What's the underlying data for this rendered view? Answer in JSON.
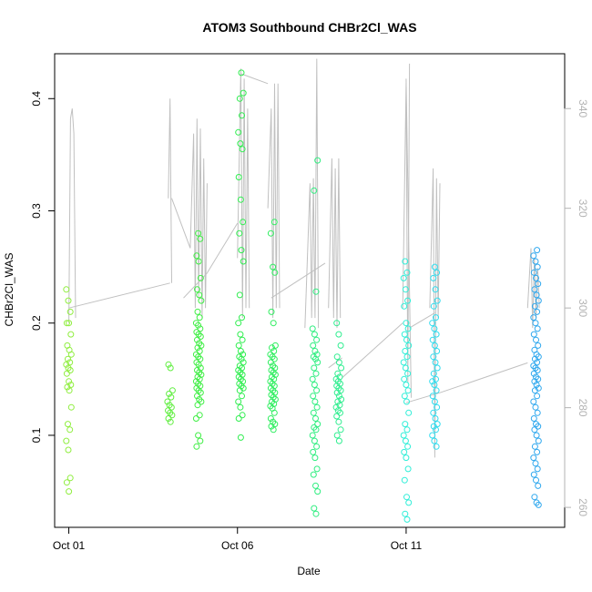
{
  "chart_data": {
    "type": "scatter",
    "title": "ATOM3 Southbound CHBr2Cl_WAS",
    "xlabel": "Date",
    "ylabel": "CHBr2Cl_WAS",
    "x_ticks": [
      {
        "label": "Oct 01",
        "day": 1
      },
      {
        "label": "Oct 06",
        "day": 6
      },
      {
        "label": "Oct 11",
        "day": 11
      }
    ],
    "xlim_days": [
      0.58,
      15.7
    ],
    "ylim": [
      0.018,
      0.44
    ],
    "y_ticks": [
      0.1,
      0.2,
      0.3,
      0.4
    ],
    "y_tick_labels": [
      "0.1",
      "0.2",
      "0.3",
      "0.4"
    ],
    "y2lim": [
      256,
      351
    ],
    "y2_ticks": [
      260,
      280,
      300,
      320,
      340
    ],
    "y2_tick_labels": [
      "260",
      "280",
      "300",
      "320",
      "340"
    ],
    "grid": false,
    "colors": {
      "secondary_line": "#c0c0c0",
      "axis_right": "#b3b3b3",
      "axis": "#000000"
    },
    "point_groups": [
      {
        "day": 1.0,
        "color": "#90ee40",
        "values": [
          0.23,
          0.22,
          0.21,
          0.2,
          0.2,
          0.19,
          0.18,
          0.176,
          0.172,
          0.168,
          0.165,
          0.163,
          0.16,
          0.158,
          0.155,
          0.148,
          0.145,
          0.143,
          0.14,
          0.125,
          0.11,
          0.105,
          0.095,
          0.087,
          0.062,
          0.058,
          0.05
        ]
      },
      {
        "day": 4.0,
        "color": "#60ee40",
        "values": [
          0.163,
          0.16,
          0.14,
          0.137,
          0.134,
          0.13,
          0.127,
          0.125,
          0.122,
          0.12,
          0.118,
          0.115,
          0.112
        ]
      },
      {
        "day": 4.85,
        "color": "#40ee45",
        "values": [
          0.28,
          0.275,
          0.26,
          0.255,
          0.24,
          0.23,
          0.225,
          0.22,
          0.21,
          0.205,
          0.2,
          0.198,
          0.195,
          0.192,
          0.19,
          0.188,
          0.185,
          0.182,
          0.18,
          0.178,
          0.175,
          0.172,
          0.17,
          0.168,
          0.165,
          0.163,
          0.16,
          0.158,
          0.156,
          0.154,
          0.152,
          0.15,
          0.148,
          0.146,
          0.144,
          0.142,
          0.14,
          0.138,
          0.135,
          0.132,
          0.13,
          0.127,
          0.118,
          0.115,
          0.1,
          0.095,
          0.09
        ]
      },
      {
        "day": 6.1,
        "color": "#30ee50",
        "values": [
          0.423,
          0.405,
          0.4,
          0.385,
          0.37,
          0.36,
          0.355,
          0.33,
          0.31,
          0.29,
          0.28,
          0.265,
          0.255,
          0.225,
          0.205,
          0.2,
          0.19,
          0.185,
          0.18,
          0.175,
          0.172,
          0.17,
          0.168,
          0.165,
          0.162,
          0.16,
          0.158,
          0.156,
          0.154,
          0.152,
          0.15,
          0.148,
          0.146,
          0.144,
          0.142,
          0.14,
          0.135,
          0.13,
          0.125,
          0.118,
          0.115,
          0.098
        ]
      },
      {
        "day": 7.05,
        "color": "#30ee60",
        "values": [
          0.29,
          0.28,
          0.25,
          0.245,
          0.21,
          0.2,
          0.18,
          0.178,
          0.175,
          0.172,
          0.17,
          0.168,
          0.165,
          0.162,
          0.16,
          0.158,
          0.156,
          0.154,
          0.152,
          0.15,
          0.148,
          0.146,
          0.144,
          0.142,
          0.14,
          0.138,
          0.136,
          0.134,
          0.132,
          0.13,
          0.128,
          0.126,
          0.124,
          0.12,
          0.115,
          0.112,
          0.11,
          0.108,
          0.105
        ]
      },
      {
        "day": 8.3,
        "color": "#30ee80",
        "values": [
          0.345,
          0.318,
          0.228,
          0.195,
          0.19,
          0.185,
          0.18,
          0.175,
          0.172,
          0.17,
          0.168,
          0.165,
          0.16,
          0.155,
          0.15,
          0.145,
          0.14,
          0.135,
          0.13,
          0.125,
          0.12,
          0.115,
          0.11,
          0.107,
          0.105,
          0.1,
          0.095,
          0.09,
          0.085,
          0.08,
          0.07,
          0.065,
          0.055,
          0.05,
          0.035,
          0.03
        ]
      },
      {
        "day": 9.0,
        "color": "#30ee90",
        "values": [
          0.2,
          0.19,
          0.18,
          0.17,
          0.165,
          0.16,
          0.155,
          0.152,
          0.15,
          0.148,
          0.146,
          0.144,
          0.142,
          0.14,
          0.138,
          0.135,
          0.132,
          0.13,
          0.127,
          0.125,
          0.122,
          0.12,
          0.117,
          0.112,
          0.105,
          0.1,
          0.095
        ]
      },
      {
        "day": 11.0,
        "color": "#30eed8",
        "values": [
          0.255,
          0.245,
          0.24,
          0.23,
          0.22,
          0.215,
          0.2,
          0.195,
          0.19,
          0.185,
          0.18,
          0.175,
          0.17,
          0.165,
          0.16,
          0.155,
          0.15,
          0.145,
          0.14,
          0.135,
          0.13,
          0.12,
          0.11,
          0.105,
          0.1,
          0.095,
          0.09,
          0.085,
          0.08,
          0.07,
          0.06,
          0.045,
          0.04,
          0.03,
          0.025
        ]
      },
      {
        "day": 11.85,
        "color": "#30dcee",
        "values": [
          0.25,
          0.245,
          0.24,
          0.23,
          0.22,
          0.215,
          0.205,
          0.2,
          0.195,
          0.19,
          0.185,
          0.18,
          0.175,
          0.17,
          0.165,
          0.16,
          0.155,
          0.15,
          0.148,
          0.145,
          0.14,
          0.135,
          0.13,
          0.125,
          0.12,
          0.115,
          0.11,
          0.108,
          0.105,
          0.1,
          0.095,
          0.09
        ]
      },
      {
        "day": 14.85,
        "color": "#30a8ee",
        "values": [
          0.265,
          0.26,
          0.255,
          0.25,
          0.245,
          0.24,
          0.235,
          0.23,
          0.225,
          0.22,
          0.215,
          0.21,
          0.205,
          0.2,
          0.195,
          0.19,
          0.185,
          0.18,
          0.176,
          0.172,
          0.17,
          0.168,
          0.165,
          0.162,
          0.16,
          0.158,
          0.155,
          0.152,
          0.15,
          0.148,
          0.145,
          0.142,
          0.14,
          0.135,
          0.13,
          0.125,
          0.12,
          0.115,
          0.11,
          0.108,
          0.105,
          0.1,
          0.095,
          0.09,
          0.085,
          0.08,
          0.075,
          0.07,
          0.065,
          0.06,
          0.055,
          0.045,
          0.04,
          0.038
        ]
      }
    ],
    "line_segments": [
      {
        "x": [
          1.0,
          1.05,
          1.1,
          1.15,
          1.2
        ],
        "y2": [
          297,
          338,
          340,
          335,
          298
        ]
      },
      {
        "x": [
          1.0,
          4.0
        ],
        "y2": [
          300,
          305
        ]
      },
      {
        "x": [
          3.95,
          4.0,
          4.05
        ],
        "y2": [
          322,
          342,
          305
        ]
      },
      {
        "x": [
          4.05,
          4.6
        ],
        "y2": [
          322,
          312
        ]
      },
      {
        "x": [
          4.6,
          4.7,
          4.75,
          4.8,
          4.85,
          4.9,
          4.95,
          5.0,
          5.05,
          5.1
        ],
        "y2": [
          312,
          335,
          300,
          338,
          302,
          336,
          298,
          330,
          300,
          325
        ]
      },
      {
        "x": [
          4.4,
          5.1
        ],
        "y2": [
          302,
          307
        ]
      },
      {
        "x": [
          5.1,
          6.0
        ],
        "y2": [
          307,
          317
        ]
      },
      {
        "x": [
          6.0,
          6.1,
          6.15,
          6.2,
          6.25,
          6.3,
          6.35
        ],
        "y2": [
          310,
          348,
          298,
          346,
          300,
          340,
          300
        ]
      },
      {
        "x": [
          6.1,
          6.9
        ],
        "y2": [
          347,
          345
        ]
      },
      {
        "x": [
          6.9,
          7.0,
          7.05,
          7.1,
          7.15,
          7.2,
          7.25
        ],
        "y2": [
          320,
          340,
          298,
          345,
          300,
          345,
          300
        ]
      },
      {
        "x": [
          7.0,
          8.6
        ],
        "y2": [
          302,
          309
        ]
      },
      {
        "x": [
          8.0,
          8.15,
          8.2,
          8.25,
          8.3,
          8.35,
          8.4
        ],
        "y2": [
          296,
          325,
          298,
          326,
          298,
          350,
          296
        ]
      },
      {
        "x": [
          8.7,
          8.8,
          8.85,
          8.9,
          8.95,
          9.0,
          9.05
        ],
        "y2": [
          300,
          330,
          298,
          328,
          296,
          330,
          298
        ]
      },
      {
        "x": [
          8.7,
          9.1
        ],
        "y2": [
          288,
          290
        ]
      },
      {
        "x": [
          9.1,
          10.9
        ],
        "y2": [
          286,
          297
        ]
      },
      {
        "x": [
          10.9,
          11.0,
          11.05,
          11.1
        ],
        "y2": [
          300,
          345,
          285,
          349
        ]
      },
      {
        "x": [
          11.1,
          11.85
        ],
        "y2": [
          296,
          299
        ]
      },
      {
        "x": [
          11.0,
          11.15
        ],
        "y2": [
          346,
          282
        ]
      },
      {
        "x": [
          11.7,
          11.8,
          11.85,
          11.9,
          11.95,
          12.0
        ],
        "y2": [
          300,
          328,
          270,
          326,
          298,
          325
        ]
      },
      {
        "x": [
          11.0,
          12.0
        ],
        "y2": [
          281,
          283
        ]
      },
      {
        "x": [
          12.0,
          14.6
        ],
        "y2": [
          283,
          289
        ]
      },
      {
        "x": [
          14.6,
          14.7,
          14.75,
          14.8,
          14.85,
          14.9,
          14.95
        ],
        "y2": [
          300,
          312,
          296,
          310,
          298,
          308,
          300
        ]
      }
    ]
  }
}
